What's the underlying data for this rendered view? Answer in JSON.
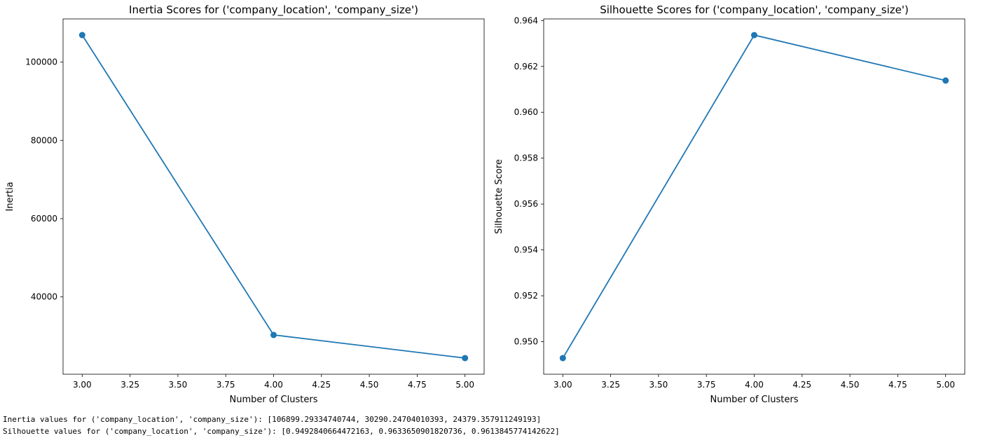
{
  "chart_data": [
    {
      "type": "line",
      "title": "Inertia Scores for ('company_location', 'company_size')",
      "xlabel": "Number of Clusters",
      "ylabel": "Inertia",
      "x": [
        3.0,
        4.0,
        5.0
      ],
      "series": [
        {
          "values": [
            106899.29334740744,
            30290.24704010393,
            24379.357911249193
          ],
          "color": "#1f77b4"
        }
      ],
      "xlim": [
        2.9,
        5.1
      ],
      "ylim": [
        20253,
        111025
      ],
      "xticks": [
        3.0,
        3.25,
        3.5,
        3.75,
        4.0,
        4.25,
        4.5,
        4.75,
        5.0
      ],
      "xtick_labels": [
        "3.00",
        "3.25",
        "3.50",
        "3.75",
        "4.00",
        "4.25",
        "4.50",
        "4.75",
        "5.00"
      ],
      "yticks": [
        40000,
        60000,
        80000,
        100000
      ],
      "ytick_labels": [
        "40000",
        "60000",
        "80000",
        "100000"
      ],
      "grid": false,
      "marker": "circle"
    },
    {
      "type": "line",
      "title": "Silhouette Scores for ('company_location', 'company_size')",
      "xlabel": "Number of Clusters",
      "ylabel": "Silhouette Score",
      "x": [
        3.0,
        4.0,
        5.0
      ],
      "series": [
        {
          "values": [
            0.9492840664472163,
            0.9633650901820736,
            0.9613845774142622
          ],
          "color": "#1f77b4"
        }
      ],
      "xlim": [
        2.9,
        5.1
      ],
      "ylim": [
        0.94858,
        0.96407
      ],
      "xticks": [
        3.0,
        3.25,
        3.5,
        3.75,
        4.0,
        4.25,
        4.5,
        4.75,
        5.0
      ],
      "xtick_labels": [
        "3.00",
        "3.25",
        "3.50",
        "3.75",
        "4.00",
        "4.25",
        "4.50",
        "4.75",
        "5.00"
      ],
      "yticks": [
        0.95,
        0.952,
        0.954,
        0.956,
        0.958,
        0.96,
        0.962,
        0.964
      ],
      "ytick_labels": [
        "0.950",
        "0.952",
        "0.954",
        "0.956",
        "0.958",
        "0.960",
        "0.962",
        "0.964"
      ],
      "grid": false,
      "marker": "circle"
    }
  ],
  "console": {
    "inertia_line": "Inertia values for ('company_location', 'company_size'): [106899.29334740744, 30290.24704010393, 24379.357911249193]",
    "silhouette_line": "Silhouette values for ('company_location', 'company_size'): [0.9492840664472163, 0.9633650901820736, 0.9613845774142622]"
  }
}
